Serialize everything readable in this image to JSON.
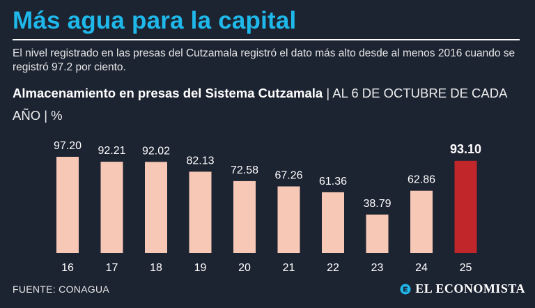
{
  "header": {
    "title": "Más agua para la capital",
    "subtitle": "El nivel registrado en las presas del Cutzamala registró el dato más alto desde al menos 2016 cuando se registró 97.2 por ciento.",
    "chart_heading_bold": "Almacenamiento en presas del Sistema Cutzamala",
    "chart_heading_rest": " | AL 6 DE OCTUBRE DE CADA AÑO | %"
  },
  "footer": {
    "source": "FUENTE: CONAGUA",
    "logo_text": "EL ECONOMISTA",
    "logo_icon": "el-economista-logo-icon"
  },
  "colors": {
    "background": "#1c2331",
    "title": "#1fb8ea",
    "bar": "#f8c8b6",
    "highlight_bar": "#c1262b",
    "text": "#ffffff"
  },
  "chart_data": {
    "type": "bar",
    "title": "Almacenamiento en presas del Sistema Cutzamala | AL 6 DE OCTUBRE DE CADA AÑO | %",
    "xlabel": "",
    "ylabel": "%",
    "categories": [
      "16",
      "17",
      "18",
      "19",
      "20",
      "21",
      "22",
      "23",
      "24",
      "25"
    ],
    "values": [
      97.2,
      92.21,
      92.02,
      82.13,
      72.58,
      67.26,
      61.36,
      38.79,
      62.86,
      93.1
    ],
    "value_labels": [
      "97.20",
      "92.21",
      "92.02",
      "82.13",
      "72.58",
      "67.26",
      "61.36",
      "38.79",
      "62.86",
      "93.10"
    ],
    "highlight_index": 9,
    "ylim": [
      0,
      100
    ],
    "grid": false,
    "legend": "none"
  }
}
